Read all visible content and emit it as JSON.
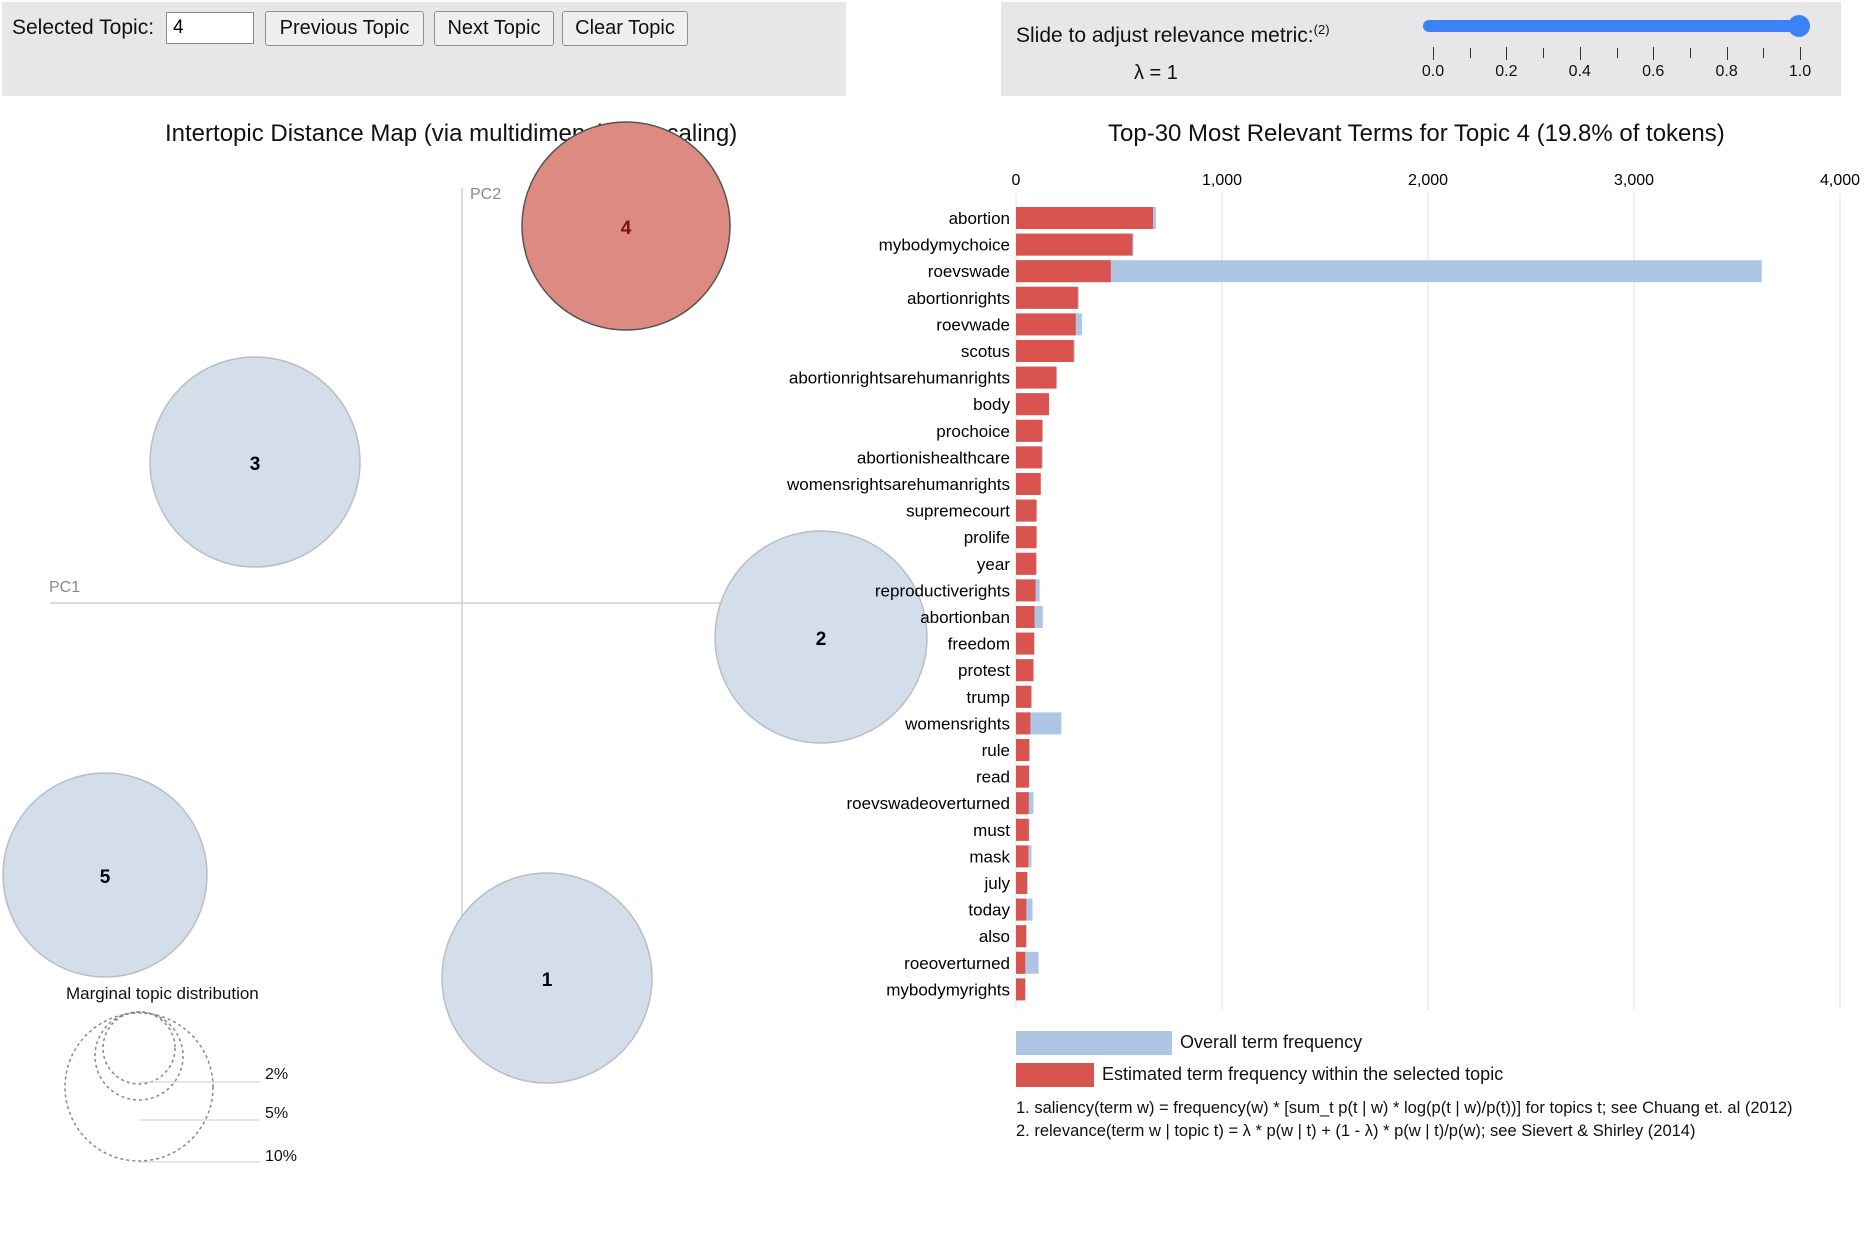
{
  "controls": {
    "selected_topic_label": "Selected Topic:",
    "selected_topic_value": "4",
    "previous_label": "Previous Topic",
    "next_label": "Next Topic",
    "clear_label": "Clear Topic"
  },
  "relevance": {
    "label": "Slide to adjust relevance metric:",
    "label_sup": "(2)",
    "lambda_text": "λ = 1",
    "value": 1.0,
    "ticks": [
      "0.0",
      "0.2",
      "0.4",
      "0.6",
      "0.8",
      "1.0"
    ]
  },
  "map": {
    "title": "Intertopic Distance Map (via multidimensional scaling)",
    "pc1_label": "PC1",
    "pc2_label": "PC2",
    "topics": [
      {
        "label": "4",
        "selected": true
      },
      {
        "label": "3",
        "selected": false
      },
      {
        "label": "2",
        "selected": false
      },
      {
        "label": "5",
        "selected": false
      },
      {
        "label": "1",
        "selected": false
      }
    ],
    "marginal": {
      "title": "Marginal topic distribution",
      "levels": [
        "2%",
        "5%",
        "10%"
      ]
    }
  },
  "colors": {
    "selected_fill": "#d9534f",
    "overall_fill": "#aec6e3",
    "circle_fill": "#d4deeb"
  },
  "chart_data": {
    "type": "bar",
    "title": "Top-30 Most Relevant Terms for Topic 4 (19.8% of tokens)",
    "x_ticks": [
      "0",
      "1,000",
      "2,000",
      "3,000",
      "4,000"
    ],
    "xlim": [
      0,
      4000
    ],
    "categories": [
      "abortion",
      "mybodymychoice",
      "roevswade",
      "abortionrights",
      "roevwade",
      "scotus",
      "abortionrightsarehumanrights",
      "body",
      "prochoice",
      "abortionishealthcare",
      "womensrightsarehumanrights",
      "supremecourt",
      "prolife",
      "year",
      "reproductiverights",
      "abortionban",
      "freedom",
      "protest",
      "trump",
      "womensrights",
      "rule",
      "read",
      "roevswadeoverturned",
      "must",
      "mask",
      "july",
      "today",
      "also",
      "roeoverturned",
      "mybodymyrights"
    ],
    "series": [
      {
        "name": "Overall term frequency",
        "values": [
          680,
          570,
          3620,
          305,
          320,
          285,
          200,
          160,
          130,
          130,
          120,
          100,
          100,
          100,
          115,
          130,
          90,
          85,
          75,
          220,
          65,
          65,
          85,
          65,
          75,
          55,
          80,
          50,
          110,
          45
        ]
      },
      {
        "name": "Estimated term frequency within the selected topic",
        "values": [
          665,
          565,
          460,
          300,
          290,
          280,
          195,
          160,
          128,
          125,
          120,
          100,
          100,
          98,
          95,
          90,
          88,
          85,
          75,
          70,
          65,
          63,
          62,
          62,
          60,
          55,
          50,
          50,
          45,
          45
        ]
      }
    ],
    "legend": [
      "Overall term frequency",
      "Estimated term frequency within the selected topic"
    ]
  },
  "footnotes": [
    "1. saliency(term w) = frequency(w) * [sum_t p(t | w) * log(p(t | w)/p(t))] for topics t; see Chuang et. al (2012)",
    "2. relevance(term w | topic t) = λ * p(w | t) + (1 - λ) * p(w | t)/p(w); see Sievert & Shirley (2014)"
  ]
}
